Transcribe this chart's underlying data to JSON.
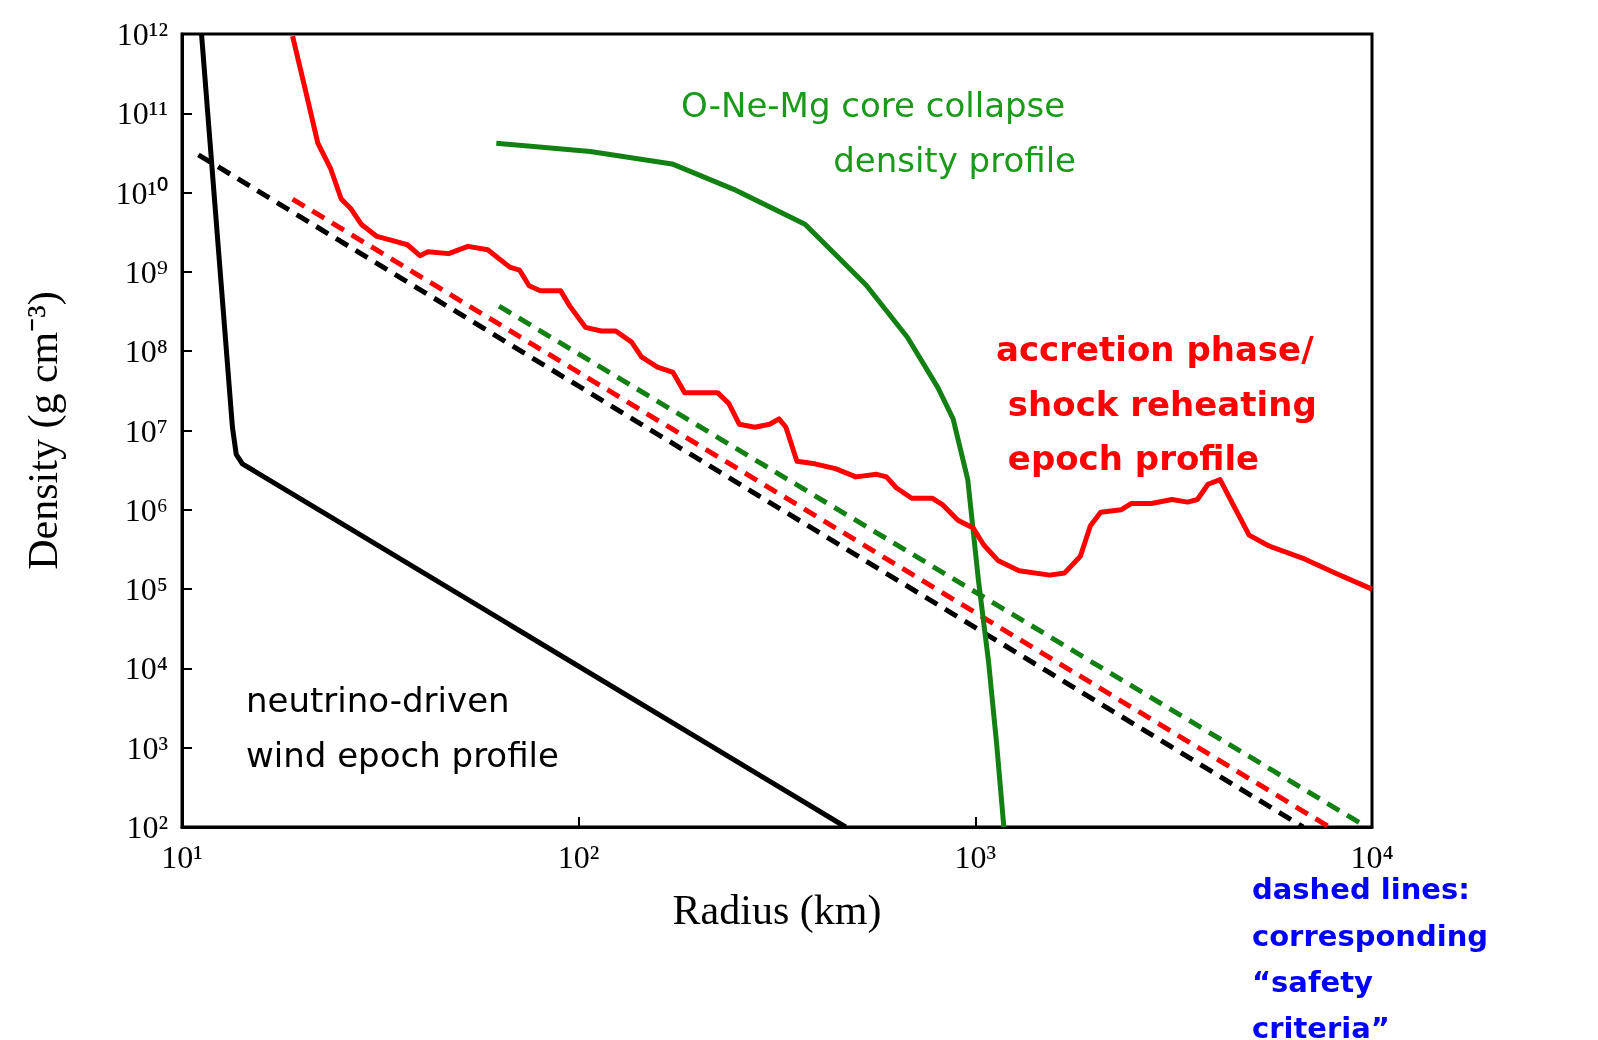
{
  "chart_data": {
    "type": "line",
    "xlabel": "Radius (km)",
    "ylabel": "Density (g cm⁻³)",
    "log": "xy",
    "grid": false,
    "marker": "none",
    "xlim": [
      10,
      10000
    ],
    "ylim": [
      100,
      1000000000000
    ],
    "xticks": [
      {
        "value": 10,
        "label": "10¹"
      },
      {
        "value": 100,
        "label": "10²"
      },
      {
        "value": 1000,
        "label": "10³"
      },
      {
        "value": 10000,
        "label": "10⁴"
      }
    ],
    "yticks": [
      {
        "value": 100,
        "label": "10²"
      },
      {
        "value": 1000,
        "label": "10³"
      },
      {
        "value": 10000,
        "label": "10⁴"
      },
      {
        "value": 100000,
        "label": "10⁵"
      },
      {
        "value": 1000000,
        "label": "10⁶"
      },
      {
        "value": 10000000,
        "label": "10⁷"
      },
      {
        "value": 100000000,
        "label": "10⁸"
      },
      {
        "value": 1000000000,
        "label": "10⁹"
      },
      {
        "value": 10000000000,
        "label": "10¹⁰"
      },
      {
        "value": 100000000000,
        "label": "10¹¹"
      },
      {
        "value": 1000000000000,
        "label": "10¹²"
      }
    ],
    "series": [
      {
        "color": "#000000",
        "line_style": "dashed",
        "x": [
          11,
          6700
        ],
        "values": [
          30000000000,
          100
        ]
      },
      {
        "color": "#ff0000",
        "line_style": "dashed",
        "x": [
          19,
          7800
        ],
        "values": [
          8300000000,
          100
        ]
      },
      {
        "color": "#138013",
        "line_style": "dashed",
        "x": [
          63,
          9700
        ],
        "values": [
          370000000,
          100
        ]
      },
      {
        "color": "#000000",
        "line_style": "solid",
        "x": [
          11.2,
          13.4,
          13.7,
          14.2,
          471
        ],
        "values": [
          1000000000000,
          11000000,
          5000000,
          3800000,
          100
        ]
      },
      {
        "color": "#138013",
        "line_style": "solid",
        "x": [
          62,
          107,
          172,
          246,
          372,
          531,
          674,
          804,
          879,
          957,
          1018,
          1080,
          1132,
          1180
        ],
        "values": [
          42000000000,
          33000000000,
          23000000000,
          11000000000,
          4000000000,
          680000000,
          150000000,
          35000000,
          14000000,
          2400000,
          130000,
          12000,
          1100,
          100
        ]
      },
      {
        "color": "#ff0000",
        "line_style": "solid",
        "x": [
          19,
          20.5,
          22,
          23.7,
          25.2,
          26.7,
          28.3,
          31,
          33.8,
          37,
          39.8,
          41.7,
          47,
          52.6,
          59,
          67,
          71,
          75,
          80,
          90,
          95,
          104,
          114,
          124,
          136,
          144,
          158,
          173,
          185,
          205,
          224,
          239,
          254,
          278,
          303,
          320,
          333,
          355,
          394,
          444,
          500,
          564,
          597,
          632,
          691,
          778,
          828,
          904,
          988,
          1050,
          1140,
          1290,
          1540,
          1680,
          1840,
          1950,
          2070,
          2330,
          2470,
          2780,
          3130,
          3430,
          3630,
          3860,
          4140,
          4470,
          4900,
          5500,
          6760,
          8070,
          10000
        ],
        "values": [
          940000000000,
          190000000000,
          42000000000,
          20000000000,
          8300000000,
          6200000000,
          4000000000,
          2800000000,
          2500000000,
          2200000000,
          1600000000,
          1800000000,
          1700000000,
          2100000000,
          1900000000,
          1150000000,
          1050000000,
          670000000,
          580000000,
          580000000,
          370000000,
          200000000,
          180000000,
          180000000,
          130000000,
          85000000,
          63000000,
          54000000,
          30000000,
          30000000,
          30000000,
          22000000,
          12000000,
          11000000,
          12000000,
          14000000,
          11000000,
          4100000,
          3800000,
          3300000,
          2600000,
          2800000,
          2600000,
          1900000,
          1400000,
          1400000,
          1150000,
          740000,
          590000,
          360000,
          230000,
          170000,
          150000,
          160000,
          260000,
          630000,
          930000,
          1000000,
          1200000,
          1200000,
          1350000,
          1250000,
          1350000,
          2100000,
          2400000,
          1150000,
          480000,
          350000,
          240000,
          160000,
          100000
        ]
      }
    ],
    "annotations": [
      "O-Ne-Mg core collapse density profile",
      "accretion phase/ shock reheating epoch profile",
      "neutrino-driven wind epoch profile",
      "dashed lines: corresponding “safety criteria”"
    ]
  }
}
